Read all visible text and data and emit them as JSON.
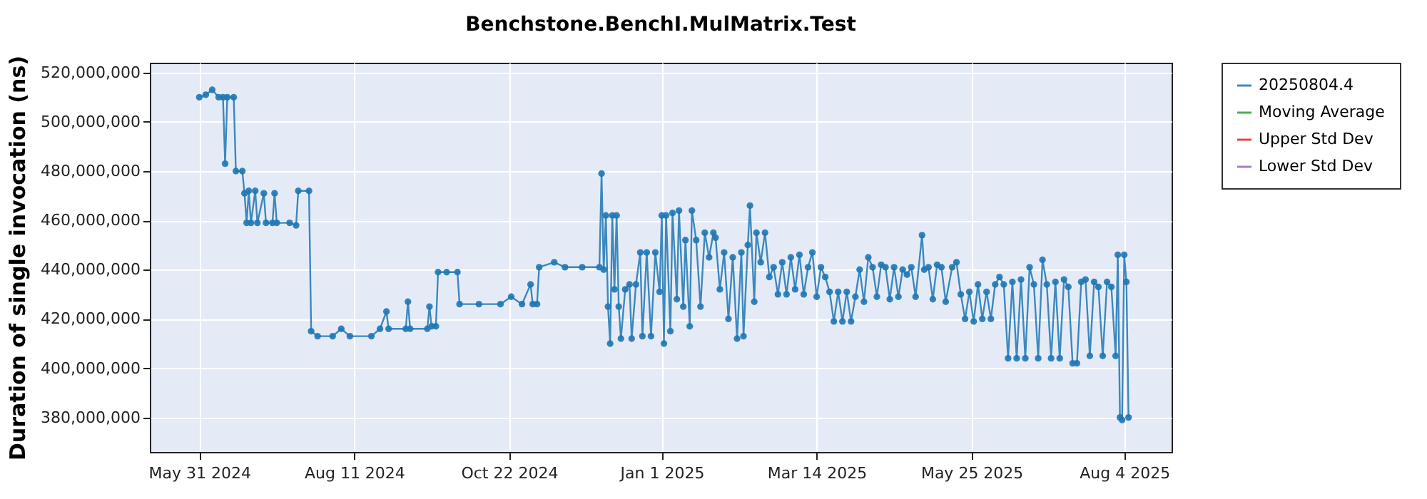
{
  "chart_data": {
    "type": "line",
    "title": "Benchstone.BenchI.MulMatrix.Test",
    "ylabel": "Duration of single invocation (ns)",
    "xlim": [
      "2024-05-08",
      "2025-08-26"
    ],
    "xticks": [
      {
        "value": "2024-05-31",
        "label": "May 31 2024"
      },
      {
        "value": "2024-08-11",
        "label": "Aug 11 2024"
      },
      {
        "value": "2024-10-22",
        "label": "Oct 22 2024"
      },
      {
        "value": "2025-01-01",
        "label": "Jan 1 2025"
      },
      {
        "value": "2025-03-14",
        "label": "Mar 14 2025"
      },
      {
        "value": "2025-05-25",
        "label": "May 25 2025"
      },
      {
        "value": "2025-08-04",
        "label": "Aug 4 2025"
      }
    ],
    "ylim": [
      366000000,
      524000000
    ],
    "yticks": [
      {
        "value": 380000000,
        "label": "380,000,000"
      },
      {
        "value": 400000000,
        "label": "400,000,000"
      },
      {
        "value": 420000000,
        "label": "420,000,000"
      },
      {
        "value": 440000000,
        "label": "440,000,000"
      },
      {
        "value": 460000000,
        "label": "460,000,000"
      },
      {
        "value": 480000000,
        "label": "480,000,000"
      },
      {
        "value": 500000000,
        "label": "500,000,000"
      },
      {
        "value": 520000000,
        "label": "520,000,000"
      }
    ],
    "grid": true,
    "legend": "right",
    "marker": "circle",
    "line_style": "solid",
    "series": [
      {
        "name": "20250804.4",
        "color": "#1f77b4",
        "x": [
          "2024-05-31",
          "2024-06-03",
          "2024-06-06",
          "2024-06-09",
          "2024-06-11",
          "2024-06-12",
          "2024-06-13",
          "2024-06-16",
          "2024-06-17",
          "2024-06-20",
          "2024-06-21",
          "2024-06-22",
          "2024-06-23",
          "2024-06-24",
          "2024-06-26",
          "2024-06-27",
          "2024-06-30",
          "2024-07-01",
          "2024-07-04",
          "2024-07-05",
          "2024-07-06",
          "2024-07-12",
          "2024-07-15",
          "2024-07-16",
          "2024-07-21",
          "2024-07-22",
          "2024-07-25",
          "2024-08-01",
          "2024-08-05",
          "2024-08-09",
          "2024-08-19",
          "2024-08-23",
          "2024-08-26",
          "2024-08-27",
          "2024-09-04",
          "2024-09-05",
          "2024-09-06",
          "2024-09-14",
          "2024-09-15",
          "2024-09-16",
          "2024-09-18",
          "2024-09-19",
          "2024-09-23",
          "2024-09-28",
          "2024-09-29",
          "2024-10-08",
          "2024-10-18",
          "2024-10-23",
          "2024-10-28",
          "2024-11-01",
          "2024-11-02",
          "2024-11-04",
          "2024-11-05",
          "2024-11-12",
          "2024-11-17",
          "2024-11-25",
          "2024-12-03",
          "2024-12-04",
          "2024-12-05",
          "2024-12-06",
          "2024-12-07",
          "2024-12-08",
          "2024-12-09",
          "2024-12-10",
          "2024-12-11",
          "2024-12-12",
          "2024-12-13",
          "2024-12-15",
          "2024-12-17",
          "2024-12-18",
          "2024-12-20",
          "2024-12-22",
          "2024-12-23",
          "2024-12-25",
          "2024-12-27",
          "2024-12-29",
          "2024-12-31",
          "2025-01-01",
          "2025-01-02",
          "2025-01-03",
          "2025-01-05",
          "2025-01-06",
          "2025-01-08",
          "2025-01-09",
          "2025-01-11",
          "2025-01-12",
          "2025-01-14",
          "2025-01-15",
          "2025-01-17",
          "2025-01-19",
          "2025-01-21",
          "2025-01-23",
          "2025-01-25",
          "2025-01-26",
          "2025-01-28",
          "2025-01-30",
          "2025-02-01",
          "2025-02-03",
          "2025-02-05",
          "2025-02-07",
          "2025-02-08",
          "2025-02-10",
          "2025-02-11",
          "2025-02-13",
          "2025-02-14",
          "2025-02-16",
          "2025-02-18",
          "2025-02-20",
          "2025-02-22",
          "2025-02-24",
          "2025-02-26",
          "2025-02-28",
          "2025-03-02",
          "2025-03-04",
          "2025-03-06",
          "2025-03-08",
          "2025-03-10",
          "2025-03-12",
          "2025-03-14",
          "2025-03-16",
          "2025-03-18",
          "2025-03-20",
          "2025-03-22",
          "2025-03-24",
          "2025-03-26",
          "2025-03-28",
          "2025-03-30",
          "2025-04-01",
          "2025-04-03",
          "2025-04-05",
          "2025-04-07",
          "2025-04-09",
          "2025-04-11",
          "2025-04-13",
          "2025-04-15",
          "2025-04-17",
          "2025-04-19",
          "2025-04-21",
          "2025-04-23",
          "2025-04-25",
          "2025-04-27",
          "2025-04-29",
          "2025-05-02",
          "2025-05-03",
          "2025-05-05",
          "2025-05-07",
          "2025-05-09",
          "2025-05-11",
          "2025-05-13",
          "2025-05-16",
          "2025-05-18",
          "2025-05-20",
          "2025-05-22",
          "2025-05-24",
          "2025-05-26",
          "2025-05-28",
          "2025-05-30",
          "2025-06-01",
          "2025-06-03",
          "2025-06-05",
          "2025-06-07",
          "2025-06-09",
          "2025-06-11",
          "2025-06-13",
          "2025-06-15",
          "2025-06-17",
          "2025-06-19",
          "2025-06-21",
          "2025-06-23",
          "2025-06-25",
          "2025-06-27",
          "2025-06-29",
          "2025-07-01",
          "2025-07-03",
          "2025-07-05",
          "2025-07-07",
          "2025-07-09",
          "2025-07-11",
          "2025-07-13",
          "2025-07-15",
          "2025-07-17",
          "2025-07-19",
          "2025-07-21",
          "2025-07-23",
          "2025-07-25",
          "2025-07-27",
          "2025-07-29",
          "2025-07-31",
          "2025-08-01",
          "2025-08-02",
          "2025-08-03",
          "2025-08-04",
          "2025-08-05",
          "2025-08-06"
        ],
        "values": [
          510000000,
          511000000,
          513000000,
          510000000,
          510000000,
          483000000,
          510000000,
          510000000,
          480000000,
          480000000,
          471000000,
          459000000,
          472000000,
          459000000,
          472000000,
          459000000,
          471000000,
          459000000,
          459000000,
          471000000,
          459000000,
          459000000,
          458000000,
          472000000,
          472000000,
          415000000,
          413000000,
          413000000,
          416000000,
          413000000,
          413000000,
          416000000,
          423000000,
          416000000,
          416000000,
          427000000,
          416000000,
          416000000,
          425000000,
          417000000,
          417000000,
          439000000,
          439000000,
          439000000,
          426000000,
          426000000,
          426000000,
          429000000,
          426000000,
          434000000,
          426000000,
          426000000,
          441000000,
          443000000,
          441000000,
          441000000,
          441000000,
          479000000,
          440000000,
          462000000,
          425000000,
          410000000,
          462000000,
          432000000,
          462000000,
          425000000,
          412000000,
          432000000,
          434000000,
          412000000,
          434000000,
          447000000,
          413000000,
          447000000,
          413000000,
          447000000,
          431000000,
          462000000,
          410000000,
          462000000,
          415000000,
          463000000,
          428000000,
          464000000,
          425000000,
          452000000,
          417000000,
          464000000,
          452000000,
          425000000,
          455000000,
          445000000,
          455000000,
          453000000,
          432000000,
          447000000,
          420000000,
          445000000,
          412000000,
          447000000,
          413000000,
          450000000,
          466000000,
          427000000,
          455000000,
          443000000,
          455000000,
          437000000,
          441000000,
          430000000,
          443000000,
          430000000,
          445000000,
          432000000,
          446000000,
          430000000,
          441000000,
          447000000,
          429000000,
          441000000,
          437000000,
          431000000,
          419000000,
          431000000,
          419000000,
          431000000,
          419000000,
          429000000,
          440000000,
          427000000,
          445000000,
          441000000,
          429000000,
          442000000,
          441000000,
          428000000,
          441000000,
          429000000,
          440000000,
          438000000,
          441000000,
          429000000,
          454000000,
          440000000,
          441000000,
          428000000,
          442000000,
          441000000,
          427000000,
          441000000,
          443000000,
          430000000,
          420000000,
          431000000,
          419000000,
          434000000,
          420000000,
          431000000,
          420000000,
          434000000,
          437000000,
          434000000,
          404000000,
          435000000,
          404000000,
          436000000,
          404000000,
          441000000,
          434000000,
          404000000,
          444000000,
          434000000,
          404000000,
          435000000,
          404000000,
          436000000,
          433000000,
          402000000,
          402000000,
          435000000,
          436000000,
          405000000,
          435000000,
          433000000,
          405000000,
          435000000,
          433000000,
          405000000,
          446000000,
          380000000,
          379000000,
          446000000,
          435000000,
          380000000
        ]
      },
      {
        "name": "Moving Average",
        "color": "#2ca02c"
      },
      {
        "name": "Upper Std Dev",
        "color": "#d62728"
      },
      {
        "name": "Lower Std Dev",
        "color": "#9467bd"
      }
    ]
  }
}
